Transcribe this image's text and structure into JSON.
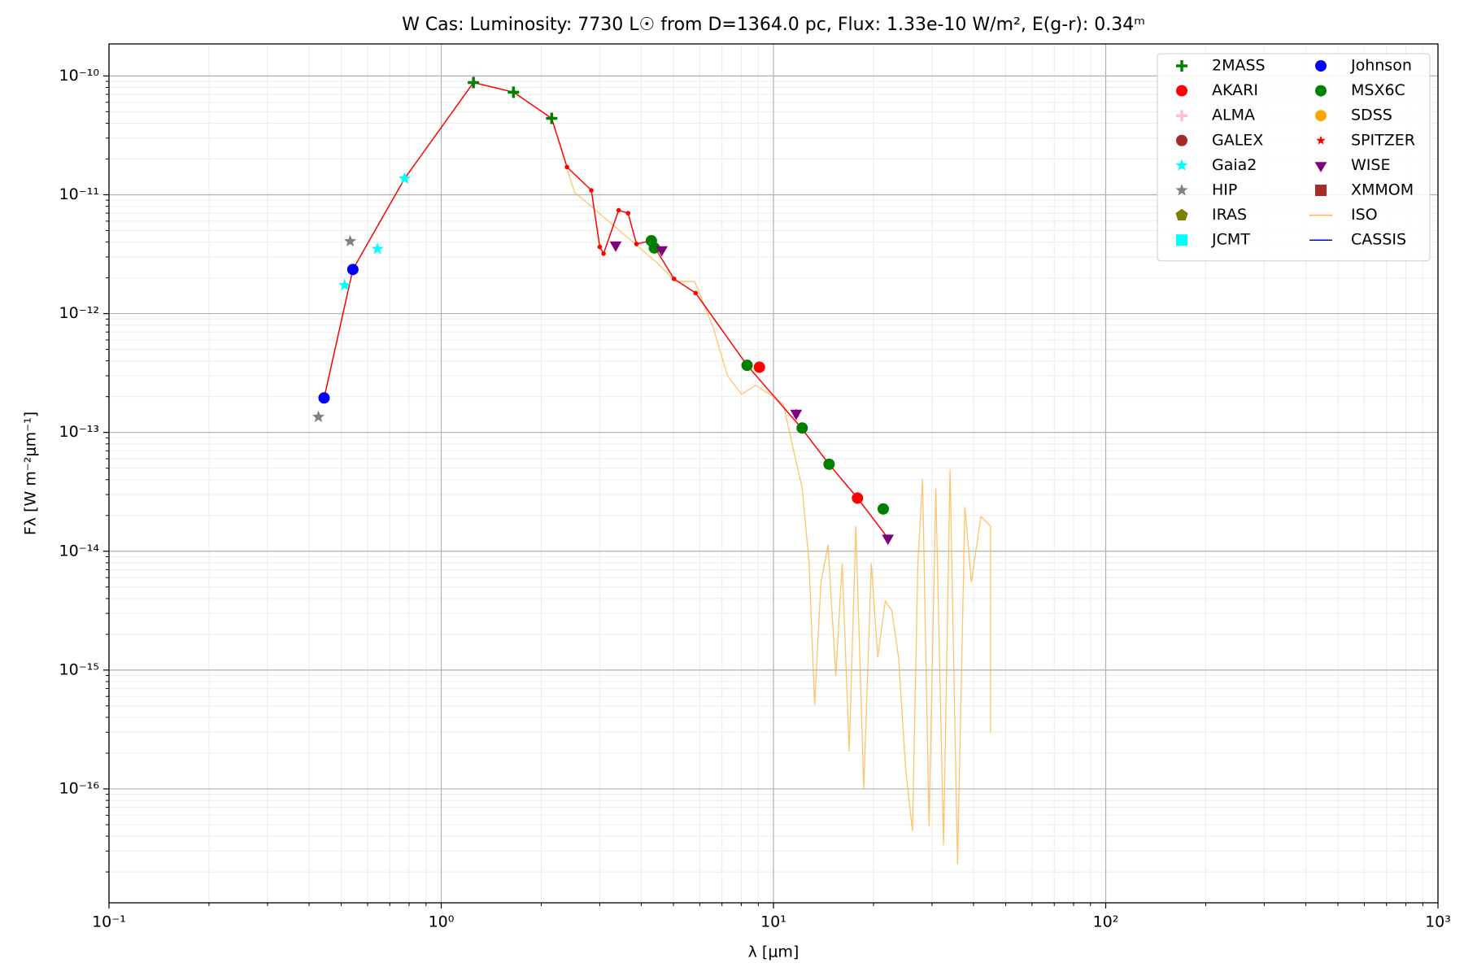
{
  "chart_data": {
    "type": "sed",
    "title": "W Cas:  Luminosity: 7730 L☉ from D=1364.0 pc, Flux: 1.33e-10 W/m², E(g-r): 0.34ᵐ",
    "x_label": "λ [μm]",
    "y_label": "Fλ [W m⁻²μm⁻¹]",
    "log_x": true,
    "log_y": true,
    "grid": true,
    "minor_grid": true,
    "legend": "upper right",
    "legend_columns": 2,
    "xlim": [
      0.1,
      1000
    ],
    "ylim": [
      1.1e-17,
      1.86e-10
    ],
    "xticks": [
      {
        "value": 0.1,
        "label": "10⁻¹"
      },
      {
        "value": 1,
        "label": "10⁰"
      },
      {
        "value": 10,
        "label": "10¹"
      },
      {
        "value": 100,
        "label": "10²"
      },
      {
        "value": 1000,
        "label": "10³"
      }
    ],
    "yticks": [
      {
        "value": 1e-16,
        "label": "10⁻¹⁶"
      },
      {
        "value": 1e-15,
        "label": "10⁻¹⁵"
      },
      {
        "value": 1e-14,
        "label": "10⁻¹⁴"
      },
      {
        "value": 1e-13,
        "label": "10⁻¹³"
      },
      {
        "value": 1e-12,
        "label": "10⁻¹²"
      },
      {
        "value": 1e-11,
        "label": "10⁻¹¹"
      },
      {
        "value": 1e-10,
        "label": "10⁻¹⁰"
      }
    ],
    "model": {
      "color": "#ff0000",
      "x": [
        0.444,
        0.542,
        0.776,
        1.25,
        1.65,
        2.15,
        2.39,
        2.83,
        3.0,
        3.08,
        3.42,
        3.65,
        3.87,
        4.27,
        5.02,
        5.83,
        8.33,
        12.1,
        14.7,
        17.9,
        22.1
      ],
      "values": [
        1.95e-13,
        2.35e-12,
        1.37e-11,
        8.8e-11,
        7.3e-11,
        4.4e-11,
        1.71e-11,
        1.09e-11,
        3.64e-12,
        3.2e-12,
        7.4e-12,
        7e-12,
        3.85e-12,
        4.1e-12,
        1.96e-12,
        1.49e-12,
        3.67e-13,
        1.1e-13,
        5.4e-14,
        2.8e-14,
        1.29e-14
      ]
    },
    "series": [
      {
        "name": "2MASS",
        "color": "#008000",
        "marker": "plus",
        "x": [
          1.25,
          1.65,
          2.15
        ],
        "values": [
          8.8e-11,
          7.3e-11,
          4.4e-11
        ]
      },
      {
        "name": "AKARI",
        "color": "#ff0000",
        "marker": "circle",
        "x": [
          9.07,
          17.9
        ],
        "values": [
          3.54e-13,
          2.8e-14
        ]
      },
      {
        "name": "ALMA",
        "color": "#ffc0cb",
        "marker": "plus",
        "x": [],
        "values": []
      },
      {
        "name": "GALEX",
        "color": "#a52a2a",
        "marker": "circle",
        "x": [],
        "values": []
      },
      {
        "name": "Gaia2",
        "color": "#00ffff",
        "marker": "star",
        "x": [
          0.512,
          0.643,
          0.776
        ],
        "values": [
          1.73e-12,
          3.5e-12,
          1.37e-11
        ]
      },
      {
        "name": "HIP",
        "color": "#808080",
        "marker": "star",
        "x": [
          0.427,
          0.532
        ],
        "values": [
          1.35e-13,
          4.06e-12
        ]
      },
      {
        "name": "IRAS",
        "color": "#808000",
        "marker": "pentagon",
        "x": [],
        "values": []
      },
      {
        "name": "JCMT",
        "color": "#00ffff",
        "marker": "square",
        "x": [],
        "values": []
      },
      {
        "name": "Johnson",
        "color": "#0000ff",
        "marker": "circle",
        "x": [
          0.444,
          0.542
        ],
        "values": [
          1.95e-13,
          2.35e-12
        ]
      },
      {
        "name": "MSX6C",
        "color": "#008000",
        "marker": "circle",
        "x": [
          4.29,
          4.38,
          8.33,
          12.2,
          14.7,
          21.4
        ],
        "values": [
          4.1e-12,
          3.57e-12,
          3.67e-13,
          1.09e-13,
          5.4e-14,
          2.27e-14
        ]
      },
      {
        "name": "SDSS",
        "color": "#ffa500",
        "marker": "circle",
        "x": [],
        "values": []
      },
      {
        "name": "SPITZER",
        "color": "#ff0000",
        "marker": "smallstar",
        "x": [
          11.7
        ],
        "values": [
          1.45e-13
        ]
      },
      {
        "name": "WISE",
        "color": "#800080",
        "marker": "triangle_down",
        "x": [
          3.35,
          4.61,
          11.7,
          22.1
        ],
        "values": [
          3.78e-12,
          3.45e-12,
          1.45e-13,
          1.29e-14
        ]
      },
      {
        "name": "XMMOM",
        "color": "#a52a2a",
        "marker": "square",
        "x": [],
        "values": []
      },
      {
        "name": "ISO",
        "color": "#ffb84d",
        "marker": "line",
        "x": [
          2.39,
          2.52,
          4.47,
          5.08,
          5.79,
          6.6,
          7.27,
          8.02,
          8.84,
          9.75,
          10.7,
          11.5,
          12.2,
          12.8,
          13.3,
          13.9,
          14.6,
          15.4,
          16.1,
          16.9,
          17.7,
          18.7,
          19.7,
          20.6,
          21.7,
          22.7,
          23.8,
          25.0,
          26.2,
          27.2,
          28.1,
          29.4,
          30.8,
          32.5,
          34.0,
          35.8,
          37.7,
          39.4,
          42.1,
          45.0,
          45.0
        ],
        "values": [
          1.66e-11,
          1.05e-11,
          2.67e-12,
          1.86e-12,
          1.86e-12,
          7.5e-13,
          3e-13,
          2.09e-13,
          2.5e-13,
          2.09e-13,
          1.74e-13,
          7e-14,
          3.39e-14,
          7.9e-15,
          5.1e-16,
          5.5e-15,
          1.13e-14,
          8.9e-16,
          7.9e-15,
          2.07e-16,
          1.63e-14,
          1e-16,
          7.9e-15,
          1.28e-15,
          3.81e-15,
          3.18e-15,
          1.28e-15,
          1.44e-16,
          4.4e-17,
          7.9e-15,
          4.06e-14,
          4.8e-17,
          3.39e-14,
          3.36e-17,
          4.88e-14,
          2.33e-17,
          2.36e-14,
          5.5e-15,
          1.96e-14,
          1.63e-14,
          2.98e-16
        ]
      },
      {
        "name": "CASSIS",
        "color": "#0000cc",
        "marker": "line",
        "x": [],
        "values": []
      }
    ]
  }
}
